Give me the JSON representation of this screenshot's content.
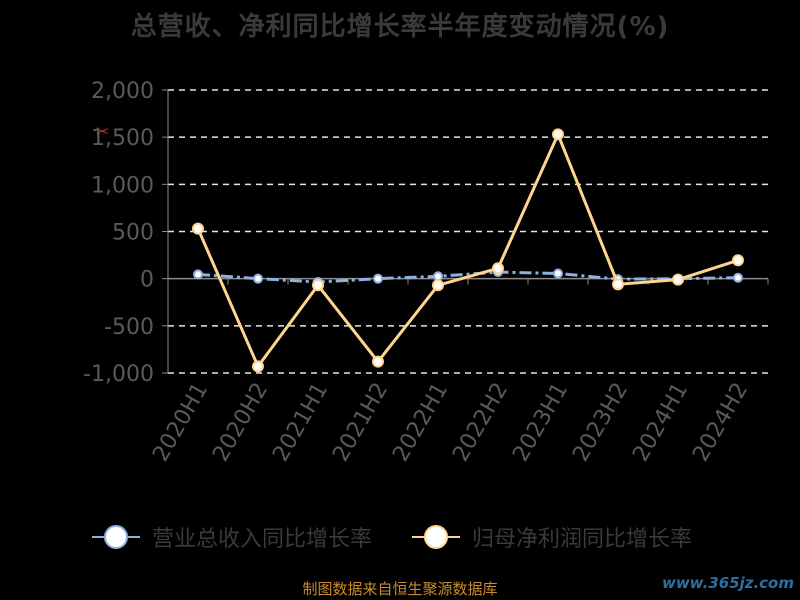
{
  "chart_data": {
    "type": "line",
    "title": "总营收、净利同比增长率半年度变动情况(%)",
    "categories": [
      "2020H1",
      "2020H2",
      "2021H1",
      "2021H2",
      "2022H1",
      "2022H2",
      "2023H1",
      "2023H2",
      "2024H1",
      "2024H2"
    ],
    "yticks": [
      "2,000",
      "1,500",
      "1,000",
      "500",
      "0",
      "-500",
      "-1,000"
    ],
    "ylim": [
      -1000,
      2000
    ],
    "grid": true,
    "legend_position": "bottom",
    "series": [
      {
        "name": "营业总收入同比增长率",
        "color": "#8fb0e0",
        "dashed": true,
        "values": [
          45,
          0,
          -35,
          0,
          25,
          70,
          55,
          -5,
          0,
          10
        ]
      },
      {
        "name": "归母净利润同比增长率",
        "color": "#ffd58e",
        "dashed": false,
        "values": [
          530,
          -930,
          -70,
          -880,
          -70,
          110,
          1530,
          -60,
          -10,
          195
        ]
      }
    ]
  },
  "footer": "制图数据来自恒生聚源数据库",
  "watermark": "www.365jz.com",
  "logo_glyph": "✂"
}
